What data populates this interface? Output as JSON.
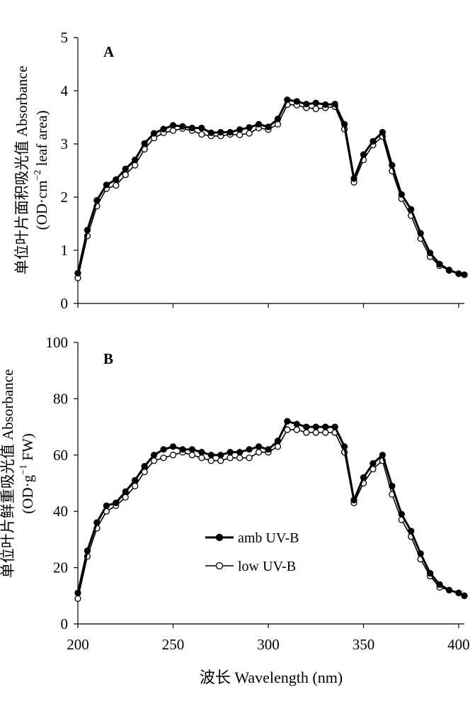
{
  "chart_data": [
    {
      "type": "line",
      "panel_label": "A",
      "ylabel_line1": "单位叶片面积吸光值 Absorbance",
      "ylabel_line2_pre": "(OD·cm",
      "ylabel_line2_sup": "−2",
      "ylabel_line2_post": " leaf  area)",
      "xlim": [
        200,
        403
      ],
      "ylim": [
        0,
        5
      ],
      "yticks": [
        "0",
        "1",
        "2",
        "3",
        "4",
        "5"
      ],
      "x": [
        200,
        205,
        210,
        215,
        220,
        225,
        230,
        235,
        240,
        245,
        250,
        255,
        260,
        265,
        270,
        275,
        280,
        285,
        290,
        295,
        300,
        305,
        310,
        315,
        320,
        325,
        330,
        335,
        340,
        345,
        350,
        355,
        360,
        365,
        370,
        375,
        380,
        385,
        390,
        395,
        400,
        403
      ],
      "series": [
        {
          "name": "amb UV-B",
          "marker": "filled",
          "values": [
            0.57,
            1.38,
            1.94,
            2.23,
            2.33,
            2.53,
            2.7,
            3.01,
            3.2,
            3.28,
            3.35,
            3.33,
            3.3,
            3.3,
            3.21,
            3.22,
            3.22,
            3.27,
            3.31,
            3.37,
            3.32,
            3.47,
            3.83,
            3.8,
            3.75,
            3.77,
            3.74,
            3.75,
            3.37,
            2.35,
            2.8,
            3.05,
            3.22,
            2.6,
            2.05,
            1.77,
            1.32,
            0.95,
            0.74,
            0.63,
            0.56,
            0.54
          ]
        },
        {
          "name": "low UV-B",
          "marker": "open",
          "values": [
            0.48,
            1.27,
            1.83,
            2.16,
            2.22,
            2.42,
            2.6,
            2.9,
            3.11,
            3.21,
            3.25,
            3.29,
            3.25,
            3.18,
            3.15,
            3.15,
            3.18,
            3.17,
            3.2,
            3.3,
            3.27,
            3.37,
            3.74,
            3.73,
            3.68,
            3.66,
            3.68,
            3.7,
            3.28,
            2.28,
            2.7,
            2.98,
            3.14,
            2.49,
            1.97,
            1.65,
            1.22,
            0.88,
            0.71,
            0.62,
            0.56,
            0.54
          ]
        }
      ]
    },
    {
      "type": "line",
      "panel_label": "B",
      "ylabel_line1": "单位叶片鲜重吸光值 Absorbance",
      "ylabel_line2_pre": "(OD·g",
      "ylabel_line2_sup": "−1",
      "ylabel_line2_post": " FW)",
      "xlim": [
        200,
        403
      ],
      "ylim": [
        0,
        100
      ],
      "yticks": [
        "0",
        "20",
        "40",
        "60",
        "80",
        "100"
      ],
      "xticks": [
        "200",
        "250",
        "300",
        "350",
        "400"
      ],
      "xlabel": "波长 Wavelength (nm)",
      "legend": [
        "amb UV-B",
        "low UV-B"
      ],
      "x": [
        200,
        205,
        210,
        215,
        220,
        225,
        230,
        235,
        240,
        245,
        250,
        255,
        260,
        265,
        270,
        275,
        280,
        285,
        290,
        295,
        300,
        305,
        310,
        315,
        320,
        325,
        330,
        335,
        340,
        345,
        350,
        355,
        360,
        365,
        370,
        375,
        380,
        385,
        390,
        395,
        400,
        403
      ],
      "series": [
        {
          "name": "amb UV-B",
          "marker": "filled",
          "values": [
            11,
            26,
            36,
            42,
            43,
            47,
            51,
            56,
            60,
            62,
            63,
            62,
            62,
            61,
            60,
            60,
            61,
            61,
            62,
            63,
            62,
            65,
            72,
            71,
            70,
            70,
            70,
            70,
            63,
            44,
            52,
            57,
            60,
            49,
            39,
            33,
            25,
            18,
            14,
            12,
            11,
            10
          ]
        },
        {
          "name": "low UV-B",
          "marker": "open",
          "values": [
            9,
            24,
            34,
            40,
            42,
            45,
            49,
            54,
            58,
            59,
            60,
            61,
            60,
            59,
            58,
            58,
            59,
            59,
            59,
            61,
            61,
            63,
            69,
            69,
            68,
            68,
            68,
            68,
            61,
            43,
            50,
            55,
            58,
            46,
            37,
            31,
            23,
            17,
            13,
            12,
            11,
            10
          ]
        }
      ]
    }
  ]
}
